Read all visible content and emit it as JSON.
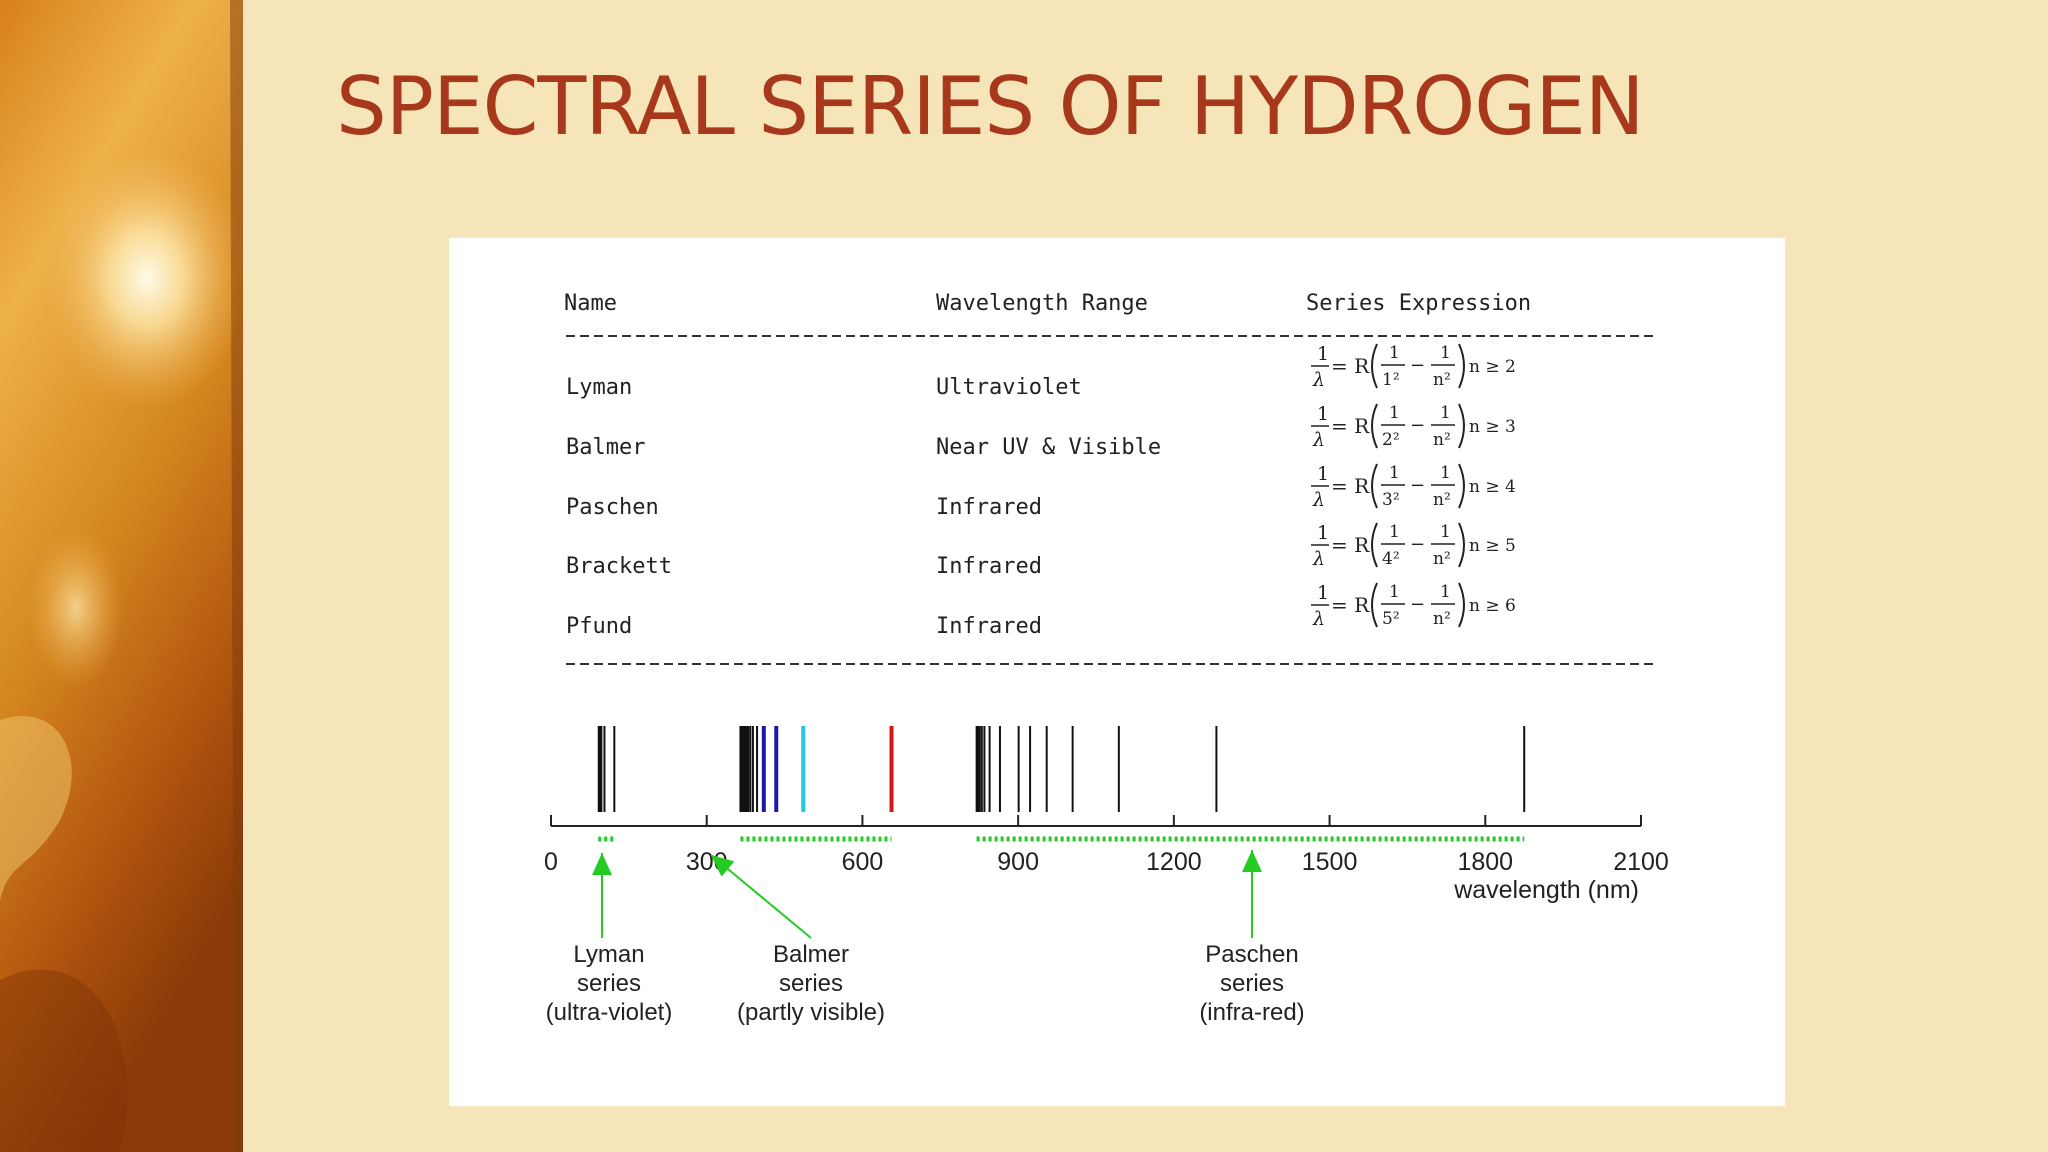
{
  "slide": {
    "title": "SPECTRAL SERIES OF HYDROGEN"
  },
  "table": {
    "headers": [
      "Name",
      "Wavelength Range",
      "Series Expression"
    ],
    "rows": [
      {
        "name": "Lyman",
        "range": "Ultraviolet",
        "den": "1²",
        "cond": "n ≥ 2"
      },
      {
        "name": "Balmer",
        "range": "Near UV & Visible",
        "den": "2²",
        "cond": "n ≥ 3"
      },
      {
        "name": "Paschen",
        "range": "Infrared",
        "den": "3²",
        "cond": "n ≥ 4"
      },
      {
        "name": "Brackett",
        "range": "Infrared",
        "den": "4²",
        "cond": "n ≥ 5"
      },
      {
        "name": "Pfund",
        "range": "Infrared",
        "den": "5²",
        "cond": "n ≥ 6"
      }
    ],
    "formula": {
      "one": "1",
      "lambda": "λ",
      "eq": "= R",
      "minus": "−",
      "n2": "n²"
    }
  },
  "chart_data": {
    "type": "spectrum",
    "xlabel": "wavelength (nm)",
    "xlim": [
      0,
      2100
    ],
    "ticks": [
      0,
      300,
      600,
      900,
      1200,
      1500,
      1800,
      2100
    ],
    "lines": [
      {
        "x": 92,
        "color": "#111111"
      },
      {
        "x": 95,
        "color": "#111111"
      },
      {
        "x": 97,
        "color": "#111111"
      },
      {
        "x": 103,
        "color": "#111111"
      },
      {
        "x": 122,
        "color": "#111111"
      },
      {
        "x": 365,
        "color": "#111111"
      },
      {
        "x": 368,
        "color": "#111111"
      },
      {
        "x": 371,
        "color": "#111111"
      },
      {
        "x": 374,
        "color": "#111111"
      },
      {
        "x": 377,
        "color": "#111111"
      },
      {
        "x": 380,
        "color": "#111111"
      },
      {
        "x": 384,
        "color": "#111111"
      },
      {
        "x": 389,
        "color": "#111111"
      },
      {
        "x": 397,
        "color": "#111111"
      },
      {
        "x": 410,
        "color": "#1a1aaa"
      },
      {
        "x": 434,
        "color": "#1a1aaa"
      },
      {
        "x": 486,
        "color": "#22c8e6"
      },
      {
        "x": 656,
        "color": "#d01818"
      },
      {
        "x": 820,
        "color": "#111111"
      },
      {
        "x": 823,
        "color": "#111111"
      },
      {
        "x": 826,
        "color": "#111111"
      },
      {
        "x": 830,
        "color": "#111111"
      },
      {
        "x": 835,
        "color": "#111111"
      },
      {
        "x": 845,
        "color": "#111111"
      },
      {
        "x": 865,
        "color": "#111111"
      },
      {
        "x": 901,
        "color": "#111111"
      },
      {
        "x": 923,
        "color": "#111111"
      },
      {
        "x": 955,
        "color": "#111111"
      },
      {
        "x": 1005,
        "color": "#111111"
      },
      {
        "x": 1094,
        "color": "#111111"
      },
      {
        "x": 1282,
        "color": "#111111"
      },
      {
        "x": 1875,
        "color": "#111111"
      }
    ],
    "series_ranges": [
      {
        "name": "Lyman",
        "from": 91,
        "to": 122
      },
      {
        "name": "Balmer",
        "from": 365,
        "to": 656
      },
      {
        "name": "Paschen",
        "from": 820,
        "to": 1875
      }
    ],
    "annotations": [
      {
        "key": "lyman",
        "lines": [
          "Lyman",
          "series",
          "(ultra-violet)"
        ]
      },
      {
        "key": "balmer",
        "lines": [
          "Balmer",
          "series",
          "(partly visible)"
        ]
      },
      {
        "key": "paschen",
        "lines": [
          "Paschen",
          "series",
          "(infra-red)"
        ]
      }
    ],
    "marker_color": "#22cc22"
  }
}
